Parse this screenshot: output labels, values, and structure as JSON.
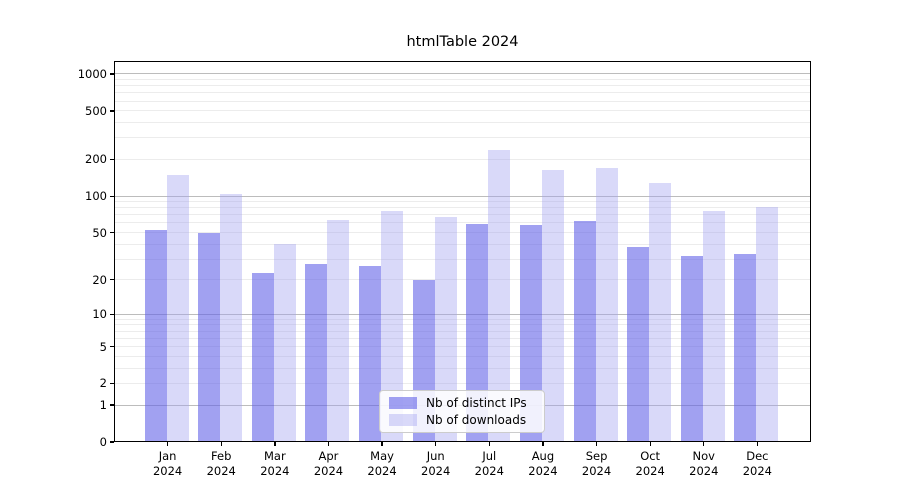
{
  "chart_data": {
    "type": "bar",
    "title": "htmlTable 2024",
    "categories": [
      "Jan",
      "Feb",
      "Mar",
      "Apr",
      "May",
      "Jun",
      "Jul",
      "Aug",
      "Sep",
      "Oct",
      "Nov",
      "Dec"
    ],
    "x_year_label": "2024",
    "series": [
      {
        "name": "Nb of distinct IPs",
        "color": "rgba(99,99,231,0.6)",
        "values": [
          52,
          50,
          23,
          27,
          26,
          20,
          59,
          58,
          62,
          38,
          32,
          33
        ]
      },
      {
        "name": "Nb of downloads",
        "color": "rgba(160,160,240,0.4)",
        "values": [
          150,
          104,
          40,
          64,
          75,
          67,
          240,
          165,
          171,
          128,
          75,
          81
        ]
      }
    ],
    "yscale": "log1p",
    "ymax": 1275,
    "yticks": [
      0,
      1,
      2,
      5,
      10,
      20,
      50,
      100,
      200,
      500,
      1000
    ],
    "ytick_labels": [
      "0",
      "1",
      "2",
      "5",
      "10",
      "20",
      "50",
      "100",
      "200",
      "500",
      "1000"
    ],
    "grid": true,
    "grid_major_color": "#bcbcbc",
    "grid_minor_color": "#ececec",
    "legend_position": "lower center"
  }
}
